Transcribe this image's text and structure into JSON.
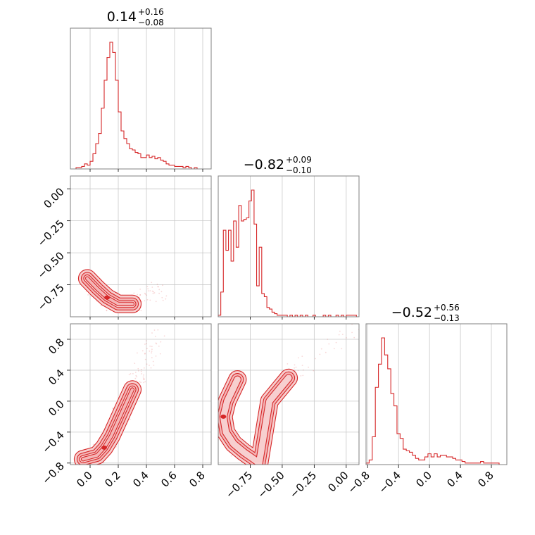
{
  "figure": {
    "type": "corner",
    "color": "#d62728",
    "fill_color": "#f4b6b7"
  },
  "titles": [
    {
      "value": "0.14",
      "plus": "+0.16",
      "minus": "−0.08"
    },
    {
      "value": "−0.82",
      "plus": "+0.09",
      "minus": "−0.10"
    },
    {
      "value": "−0.52",
      "plus": "+0.56",
      "minus": "−0.13"
    }
  ],
  "chart_data": [
    {
      "type": "histogram",
      "parameter_index": 0,
      "x_range": [
        -0.14,
        0.86
      ],
      "bins_start": -0.14,
      "bin_width": 0.02,
      "counts": [
        0,
        0,
        1,
        1,
        2,
        4,
        3,
        6,
        12,
        20,
        28,
        48,
        70,
        88,
        100,
        92,
        70,
        45,
        30,
        24,
        20,
        16,
        15,
        13,
        12,
        9,
        9,
        11,
        9,
        10,
        8,
        9,
        7,
        6,
        4,
        3,
        3,
        2,
        2,
        2,
        1,
        2,
        1,
        0,
        1,
        0,
        0,
        0,
        0,
        0
      ],
      "grid": true,
      "x_ticks": [
        "0.0",
        "0.2",
        "0.4",
        "0.6",
        "0.8"
      ]
    },
    {
      "type": "histogram",
      "parameter_index": 1,
      "x_range": [
        -1.0,
        0.1
      ],
      "bins_start": -1.0,
      "bin_width": 0.02,
      "counts": [
        1,
        16,
        56,
        43,
        56,
        36,
        62,
        45,
        72,
        62,
        63,
        64,
        75,
        82,
        60,
        20,
        45,
        15,
        13,
        6,
        5,
        3,
        2,
        1,
        1,
        1,
        1,
        0,
        1,
        0,
        1,
        0,
        1,
        0,
        1,
        0,
        0,
        1,
        0,
        0,
        0,
        1,
        0,
        1,
        0,
        0,
        1,
        0,
        1,
        0,
        1,
        1,
        1,
        1,
        0
      ],
      "grid": true,
      "x_ticks": [
        "−0.75",
        "−0.50",
        "−0.25",
        "0.00"
      ]
    },
    {
      "type": "histogram",
      "parameter_index": 2,
      "x_range": [
        -0.82,
        1.0
      ],
      "bins_start": -0.82,
      "bin_width": 0.04,
      "counts": [
        1,
        3,
        18,
        50,
        65,
        82,
        71,
        62,
        46,
        38,
        20,
        17,
        10,
        9,
        8,
        6,
        4,
        3,
        3,
        5,
        7,
        5,
        7,
        5,
        6,
        6,
        5,
        5,
        4,
        3,
        3,
        2,
        1,
        1,
        1,
        1,
        1,
        2,
        1,
        1,
        1,
        1,
        1,
        0,
        0,
        0
      ],
      "grid": true,
      "x_ticks": [
        "−0.8",
        "−0.4",
        "0.0",
        "0.4",
        "0.8"
      ]
    },
    {
      "type": "scatter",
      "panel": "param1_vs_param0",
      "x_range": [
        -0.14,
        0.86
      ],
      "y_range": [
        -0.95,
        0.1
      ],
      "contour_levels": 4,
      "grid": true,
      "y_ticks": [
        "0.00",
        "−0.25",
        "−0.50",
        "−0.75"
      ],
      "curve": [
        [
          -0.02,
          -0.7
        ],
        [
          0.05,
          -0.78
        ],
        [
          0.12,
          -0.85
        ],
        [
          0.2,
          -0.9
        ],
        [
          0.3,
          -0.9
        ],
        [
          0.4,
          -0.85
        ],
        [
          0.5,
          -0.8
        ]
      ]
    },
    {
      "type": "scatter",
      "panel": "param2_vs_param0",
      "x_range": [
        -0.14,
        0.86
      ],
      "y_range": [
        -0.82,
        1.0
      ],
      "contour_levels": 4,
      "grid": true,
      "x_ticks": [
        "0.0",
        "0.2",
        "0.4",
        "0.6",
        "0.8"
      ],
      "y_ticks": [
        "0.8",
        "0.4",
        "0.0",
        "−0.4",
        "−0.8"
      ],
      "curve": [
        [
          -0.05,
          -0.75
        ],
        [
          0.05,
          -0.7
        ],
        [
          0.1,
          -0.6
        ],
        [
          0.15,
          -0.45
        ],
        [
          0.2,
          -0.25
        ],
        [
          0.25,
          -0.05
        ],
        [
          0.3,
          0.15
        ],
        [
          0.35,
          0.35
        ],
        [
          0.42,
          0.6
        ],
        [
          0.5,
          0.85
        ]
      ]
    },
    {
      "type": "scatter",
      "panel": "param2_vs_param1",
      "x_range": [
        -1.0,
        0.1
      ],
      "y_range": [
        -0.82,
        1.0
      ],
      "contour_levels": 3,
      "grid": true,
      "x_ticks": [
        "−0.75",
        "−0.50",
        "−0.25",
        "0.00"
      ],
      "curve": [
        [
          -0.85,
          0.28
        ],
        [
          -0.93,
          0.0
        ],
        [
          -0.96,
          -0.2
        ],
        [
          -0.94,
          -0.4
        ],
        [
          -0.88,
          -0.55
        ],
        [
          -0.8,
          -0.66
        ],
        [
          -0.73,
          -0.74
        ],
        [
          -0.68,
          -0.8
        ],
        [
          -0.6,
          0.0
        ],
        [
          -0.45,
          0.3
        ],
        [
          -0.3,
          0.5
        ],
        [
          -0.1,
          0.75
        ],
        [
          0.05,
          0.95
        ]
      ]
    }
  ]
}
